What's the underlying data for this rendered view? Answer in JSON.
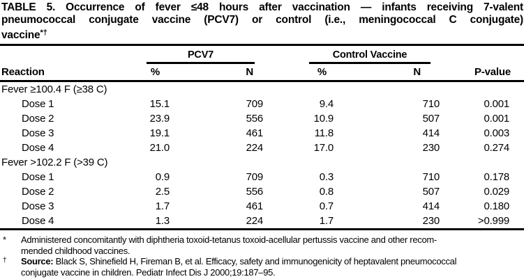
{
  "colors": {
    "background": "#ffffff",
    "text": "#000000",
    "rule": "#000000"
  },
  "title": {
    "line1": "TABLE 5. Occurrence of fever ≤48 hours after vaccination — infants receiving 7-valent",
    "line2": "pneumococcal conjugate vaccine (PCV7) or control (i.e., meningococcal C conjugate)",
    "line3": "vaccine",
    "markers": "*†"
  },
  "header": {
    "reaction": "Reaction",
    "groups": [
      {
        "label": "PCV7"
      },
      {
        "label": "Control Vaccine"
      }
    ],
    "pct": "%",
    "n": "N",
    "pvalue": "P-value"
  },
  "table": {
    "sections": [
      {
        "label": "Fever ≥100.4 F (≥38 C)",
        "rows": [
          {
            "label": "Dose 1",
            "pcv7_pct": "15.1",
            "pcv7_n": "709",
            "ctrl_pct": "9.4",
            "ctrl_n": "710",
            "p": "0.001"
          },
          {
            "label": "Dose 2",
            "pcv7_pct": "23.9",
            "pcv7_n": "556",
            "ctrl_pct": "10.9",
            "ctrl_n": "507",
            "p": "0.001"
          },
          {
            "label": "Dose 3",
            "pcv7_pct": "19.1",
            "pcv7_n": "461",
            "ctrl_pct": "11.8",
            "ctrl_n": "414",
            "p": "0.003"
          },
          {
            "label": "Dose 4",
            "pcv7_pct": "21.0",
            "pcv7_n": "224",
            "ctrl_pct": "17.0",
            "ctrl_n": "230",
            "p": "0.274"
          }
        ]
      },
      {
        "label": "Fever >102.2 F (>39 C)",
        "rows": [
          {
            "label": "Dose 1",
            "pcv7_pct": "0.9",
            "pcv7_n": "709",
            "ctrl_pct": "0.3",
            "ctrl_n": "710",
            "p": "0.178"
          },
          {
            "label": "Dose 2",
            "pcv7_pct": "2.5",
            "pcv7_n": "556",
            "ctrl_pct": "0.8",
            "ctrl_n": "507",
            "p": "0.029"
          },
          {
            "label": "Dose 3",
            "pcv7_pct": "1.7",
            "pcv7_n": "461",
            "ctrl_pct": "0.7",
            "ctrl_n": "414",
            "p": "0.180"
          },
          {
            "label": "Dose 4",
            "pcv7_pct": "1.3",
            "pcv7_n": "224",
            "ctrl_pct": "1.7",
            "ctrl_n": "230",
            "p": ">0.999"
          }
        ]
      }
    ]
  },
  "footnotes": [
    {
      "marker": "*",
      "line1": "Administered concomitantly with diphtheria toxoid-tetanus toxoid-acellular pertussis vaccine and other recom-",
      "line2": "mended childhood vaccines."
    },
    {
      "marker": "†",
      "source_label": "Source:",
      "line1": "Black S, Shinefield H, Fireman B, et al. Efficacy, safety and immunogenicity of heptavalent pneumococcal",
      "line2": "conjugate vaccine in children. Pediatr Infect Dis J 2000;19:187–95."
    }
  ]
}
